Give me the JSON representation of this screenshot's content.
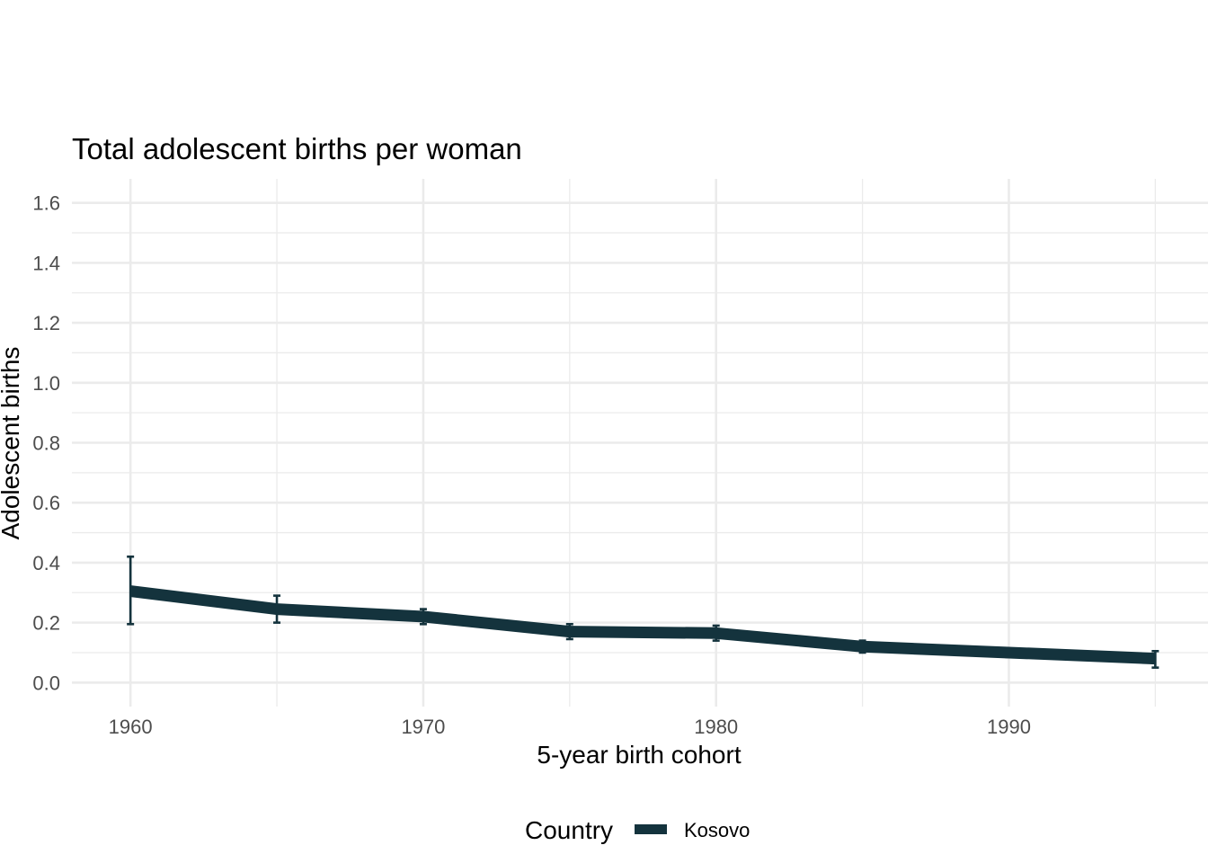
{
  "chart_data": {
    "type": "line",
    "title": "Total adolescent births per woman",
    "xlabel": "5-year birth cohort",
    "ylabel": "Adolescent births",
    "x": [
      1960,
      1965,
      1970,
      1975,
      1980,
      1985,
      1990,
      1995
    ],
    "xlim": [
      1958,
      1996.8
    ],
    "ylim": [
      -0.08,
      1.68
    ],
    "x_ticks": [
      1960,
      1970,
      1980,
      1990
    ],
    "x_tick_labels": [
      "1960",
      "1970",
      "1980",
      "1990"
    ],
    "y_ticks": [
      0.0,
      0.2,
      0.4,
      0.6,
      0.8,
      1.0,
      1.2,
      1.4,
      1.6
    ],
    "y_tick_labels": [
      "0.0",
      "0.2",
      "0.4",
      "0.6",
      "0.8",
      "1.0",
      "1.2",
      "1.4",
      "1.6"
    ],
    "grid": true,
    "series": [
      {
        "name": "Kosovo",
        "color": "#14333d",
        "values": [
          0.305,
          0.245,
          0.22,
          0.17,
          0.165,
          0.12,
          0.1,
          0.08
        ],
        "error_low": [
          0.195,
          0.2,
          0.195,
          0.145,
          0.14,
          0.1,
          0.085,
          0.05
        ],
        "error_high": [
          0.42,
          0.29,
          0.245,
          0.195,
          0.19,
          0.14,
          0.11,
          0.105
        ]
      }
    ],
    "legend": {
      "title": "Country",
      "position": "bottom",
      "labels": [
        "Kosovo"
      ]
    }
  }
}
